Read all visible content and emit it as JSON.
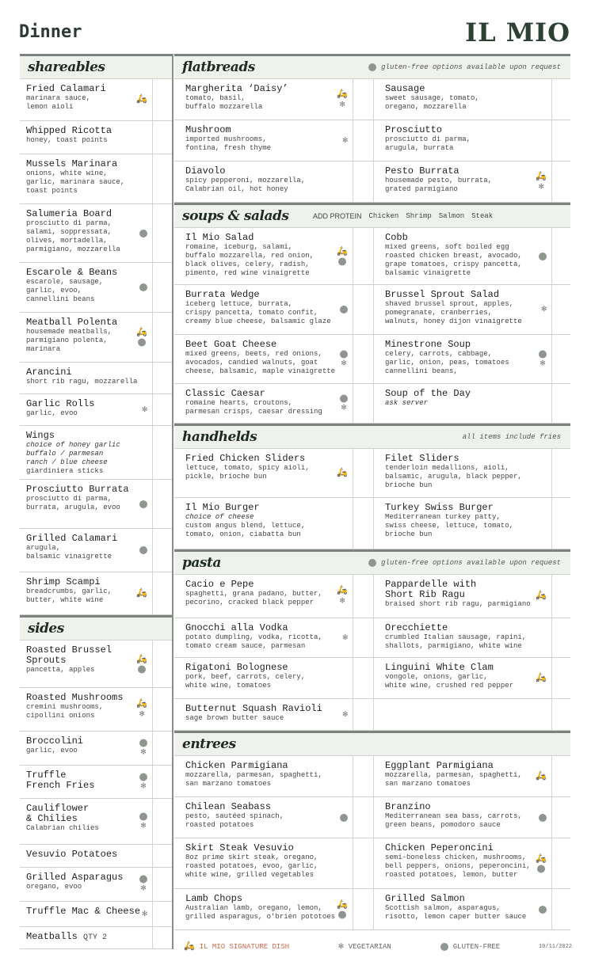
{
  "title": "Dinner",
  "logo": "IL MIO",
  "colors": {
    "signature": "#d2694a",
    "header_bg": "#eef1ec",
    "text": "#2c3a33"
  },
  "icon_names": {
    "s": "scooter-icon (signature dish)",
    "v": "asterisk-icon (vegetarian)",
    "g": "wheat-circle-icon (gluten-free)"
  },
  "left": [
    {
      "title": "shareables",
      "items": [
        {
          "name": "Fried Calamari",
          "desc": "marinara sauce,\nlemon aioli",
          "icons": [
            "s"
          ]
        },
        {
          "name": "Whipped Ricotta",
          "desc": "honey, toast points",
          "icons": []
        },
        {
          "name": "Mussels Marinara",
          "desc": "onions, white wine,\ngarlic, marinara sauce,\ntoast points",
          "icons": []
        },
        {
          "name": "Salumeria Board",
          "desc": "prosciutto di parma,\nsalami, soppressata,\nolives, mortadella,\nparmigiano, mozzarella",
          "icons": [
            "g"
          ]
        },
        {
          "name": "Escarole & Beans",
          "desc": "escarole, sausage,\ngarlic, evoo,\ncannellini beans",
          "icons": [
            "g"
          ]
        },
        {
          "name": "Meatball Polenta",
          "desc": "housemade meatballs,\nparmigiano polenta,\nmarinara",
          "icons": [
            "s",
            "g"
          ]
        },
        {
          "name": "Arancini",
          "desc": "short rib ragu, mozzarella",
          "icons": []
        },
        {
          "name": "Garlic Rolls",
          "desc": "garlic, evoo",
          "icons": [
            "v"
          ]
        },
        {
          "name": "Wings",
          "italic": "choice of honey garlic\nbuffalo / parmesan\nranch / blue cheese",
          "desc": "giardiniera sticks",
          "icons": []
        },
        {
          "name": "Prosciutto Burrata",
          "desc": "prosciutto di parma,\nburrata, arugula, evoo",
          "icons": [
            "g"
          ]
        },
        {
          "name": "Grilled Calamari",
          "desc": "arugula,\nbalsamic vinaigrette",
          "icons": [
            "g"
          ]
        },
        {
          "name": "Shrimp Scampi",
          "desc": "breadcrumbs, garlic,\nbutter, white wine",
          "icons": [
            "s"
          ]
        }
      ]
    },
    {
      "title": "sides",
      "items": [
        {
          "name": "Roasted Brussel\nSprouts",
          "desc": "pancetta, apples",
          "icons": [
            "s",
            "g"
          ]
        },
        {
          "name": "Roasted Mushrooms",
          "desc": "cremini mushrooms,\ncipollini onions",
          "icons": [
            "s",
            "v"
          ]
        },
        {
          "name": "Broccolini",
          "desc": "garlic, evoo",
          "icons": [
            "g",
            "v"
          ]
        },
        {
          "name": "Truffle\nFrench Fries",
          "icons": [
            "g",
            "v"
          ]
        },
        {
          "name": "Cauliflower\n& Chilies",
          "desc": "Calabrian chilies",
          "icons": [
            "g",
            "v"
          ]
        },
        {
          "name": "Vesuvio Potatoes",
          "icons": []
        },
        {
          "name": "Grilled Asparagus",
          "desc": "oregano, evoo",
          "icons": [
            "g",
            "v"
          ]
        },
        {
          "name": "Truffle Mac & Cheese",
          "icons": [
            "v"
          ]
        },
        {
          "name": "Meatballs",
          "qty": "QTY 2",
          "icons": []
        }
      ]
    }
  ],
  "right": [
    {
      "title": "flatbreads",
      "note": "gluten-free options available upon request",
      "items": [
        {
          "name": "Margherita ‘Daisy’",
          "desc": "tomato, basil,\nbuffalo mozzarella",
          "icons": [
            "s",
            "v"
          ]
        },
        {
          "name": "Sausage",
          "desc": "sweet sausage, tomato,\noregano, mozzarella",
          "icons": []
        },
        {
          "name": "Mushroom",
          "desc": "imported mushrooms,\nfontina, fresh thyme",
          "icons": [
            "v"
          ]
        },
        {
          "name": "Prosciutto",
          "desc": "prosciutto di parma,\narugula, burrata",
          "icons": []
        },
        {
          "name": "Diavolo",
          "desc": "spicy pepperoni, mozzarella,\nCalabrian oil, hot honey",
          "icons": []
        },
        {
          "name": "Pesto Burrata",
          "desc": "housemade pesto, burrata,\ngrated parmigiano",
          "icons": [
            "s",
            "v"
          ]
        }
      ]
    },
    {
      "title": "soups & salads",
      "protein_label": "ADD PROTEIN",
      "proteins": [
        "Chicken",
        "Shrimp",
        "Salmon",
        "Steak"
      ],
      "items": [
        {
          "name": "Il Mio Salad",
          "desc": "romaine, iceburg, salami,\nbuffalo mozzarella, red onion,\nblack olives, celery, radish,\npimento, red wine vinaigrette",
          "icons": [
            "s",
            "g"
          ]
        },
        {
          "name": "Cobb",
          "desc": "mixed greens, soft boiled egg\nroasted chicken breast, avocado,\ngrape tomatoes, crispy pancetta,\nbalsamic vinaigrette",
          "icons": [
            "g"
          ]
        },
        {
          "name": "Burrata Wedge",
          "desc": "iceberg lettuce, burrata,\ncrispy pancetta, tomato confit,\ncreamy blue cheese, balsamic glaze",
          "icons": [
            "g"
          ]
        },
        {
          "name": "Brussel Sprout Salad",
          "desc": "shaved brussel sprout, apples,\npomegranate, cranberries,\nwalnuts, honey dijon vinaigrette",
          "icons": [
            "v"
          ]
        },
        {
          "name": "Beet Goat Cheese",
          "desc": "mixed greens, beets, red onions,\navocados, candied walnuts, goat\ncheese, balsamic, maple vinaigrette",
          "icons": [
            "g",
            "v"
          ]
        },
        {
          "name": "Minestrone Soup",
          "desc": "celery, carrots, cabbage,\ngarlic, onion, peas, tomatoes\ncannellini beans,",
          "icons": [
            "g",
            "v"
          ]
        },
        {
          "name": "Classic Caesar",
          "desc": "romaine hearts, croutons,\nparmesan crisps, caesar dressing",
          "icons": [
            "g",
            "v"
          ]
        },
        {
          "name": "Soup of the Day",
          "italic": "ask server",
          "icons": []
        }
      ]
    },
    {
      "title": "handhelds",
      "note": "all items include fries",
      "items": [
        {
          "name": "Fried Chicken Sliders",
          "desc": "lettuce, tomato, spicy aioli,\npickle, brioche bun",
          "icons": [
            "s"
          ]
        },
        {
          "name": "Filet Sliders",
          "desc": "tenderloin medallions, aioli,\nbalsamic, arugula, black pepper,\nbrioche bun",
          "icons": []
        },
        {
          "name": "Il Mio Burger",
          "italic": "choice of cheese",
          "desc": "custom angus blend, lettuce,\ntomato, onion, ciabatta bun",
          "icons": []
        },
        {
          "name": "Turkey Swiss Burger",
          "desc": "Mediterranean turkey patty,\nswiss cheese, lettuce, tomato,\nbrioche bun",
          "icons": []
        }
      ]
    },
    {
      "title": "pasta",
      "note": "gluten-free options available upon request",
      "items": [
        {
          "name": "Cacio e Pepe",
          "desc": "spaghetti, grana padano, butter,\npecorino, cracked black pepper",
          "icons": [
            "s",
            "v"
          ]
        },
        {
          "name": "Pappardelle with\nShort Rib Ragu",
          "desc": "braised short rib ragu, parmigiano",
          "icons": [
            "s"
          ]
        },
        {
          "name": "Gnocchi alla Vodka",
          "desc": "potato dumpling, vodka, ricotta,\ntomato cream sauce, parmesan",
          "icons": [
            "v"
          ]
        },
        {
          "name": "Orecchiette",
          "desc": "crumbled Italian sausage, rapini,\nshallots, parmigiano, white wine",
          "icons": []
        },
        {
          "name": "Rigatoni Bolognese",
          "desc": "pork, beef, carrots, celery,\nwhite wine, tomatoes",
          "icons": []
        },
        {
          "name": "Linguini White Clam",
          "desc": "vongole, onions, garlic,\nwhite wine, crushed red pepper",
          "icons": [
            "s"
          ]
        },
        {
          "name": "Butternut Squash Ravioli",
          "desc": "sage brown butter sauce",
          "icons": [
            "v"
          ]
        }
      ]
    },
    {
      "title": "entrees",
      "items": [
        {
          "name": "Chicken Parmigiana",
          "desc": "mozzarella, parmesan, spaghetti,\nsan marzano tomatoes",
          "icons": []
        },
        {
          "name": "Eggplant Parmigiana",
          "desc": "mozzarella, parmesan, spaghetti,\nsan marzano tomatoes",
          "icons": [
            "s"
          ]
        },
        {
          "name": "Chilean Seabass",
          "desc": "pesto, sautéed spinach,\nroasted potatoes",
          "icons": [
            "g"
          ]
        },
        {
          "name": "Branzino",
          "desc": "Mediterranean sea bass, carrots,\ngreen beans, pomodoro sauce",
          "icons": [
            "g"
          ]
        },
        {
          "name": "Skirt Steak Vesuvio",
          "desc": "8oz prime skirt steak, oregano,\nroasted potatoes, evoo, garlic,\nwhite wine, grilled vegetables",
          "icons": []
        },
        {
          "name": "Chicken Peperoncini",
          "desc": "semi-boneless chicken, mushrooms,\nbell peppers, onions, peperoncini,\nroasted potatoes, lemon, butter",
          "icons": [
            "s",
            "g"
          ]
        },
        {
          "name": "Lamb Chops",
          "desc": "Australian lamb, oregano, lemon,\ngrilled asparagus, o'brien pototoes",
          "icons": [
            "s",
            "g"
          ]
        },
        {
          "name": "Grilled Salmon",
          "desc": "Scottish salmon, asparagus,\nrisotto, lemon caper butter sauce",
          "icons": [
            "g"
          ]
        }
      ]
    }
  ],
  "legend": {
    "signature": "IL MIO SIGNATURE DISH",
    "vegetarian": "VEGETARIAN",
    "gluten_free": "GLUTEN-FREE",
    "date": "10/11/2022"
  }
}
